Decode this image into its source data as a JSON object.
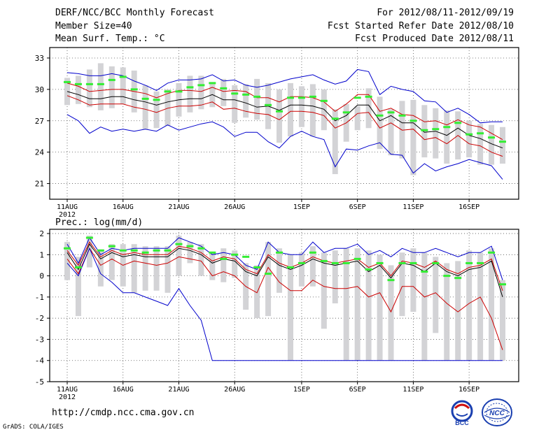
{
  "header": {
    "title": "DERF/NCC/BCC Monthly Forecast",
    "member_size": "Member Size=40",
    "variable": "Mean Surf. Temp.: °C",
    "period": "For 2012/08/11-2012/09/19",
    "refer_date": "Fcst Started Refer Date 2012/08/10",
    "produced_date": "Fcst Produced Date 2012/08/11"
  },
  "footer": {
    "url": "http://cmdp.ncc.cma.gov.cn",
    "credit": "GrADS: COLA/IGES",
    "logo_left": "BCC",
    "logo_right": "NCC"
  },
  "chart_data": [
    {
      "type": "line",
      "title": "Mean Surf. Temp.: °C",
      "ylabel": "",
      "ylim": [
        19.5,
        34
      ],
      "yticks": [
        21,
        24,
        27,
        30,
        33
      ],
      "xtick_labels": [
        "11AUG",
        "16AUG",
        "21AUG",
        "26AUG",
        "1SEP",
        "6SEP",
        "11SEP",
        "16SEP"
      ],
      "xtick_days": [
        0,
        5,
        10,
        15,
        21,
        26,
        31,
        36
      ],
      "year_label": "2012",
      "days": 40,
      "series": [
        {
          "name": "max",
          "color": "#0000cc",
          "values": [
            31.6,
            31.5,
            31.3,
            31.3,
            31.5,
            31.3,
            30.8,
            30.4,
            29.9,
            30.6,
            30.9,
            30.9,
            31.0,
            31.4,
            30.8,
            30.9,
            30.4,
            30.2,
            30.4,
            30.7,
            31.0,
            31.2,
            31.4,
            30.9,
            30.5,
            30.8,
            31.9,
            31.7,
            29.5,
            30.3,
            30.0,
            29.8,
            28.9,
            28.8,
            27.8,
            28.2,
            27.6,
            26.8,
            26.9,
            26.9
          ]
        },
        {
          "name": "upper",
          "color": "#cc0000",
          "values": [
            30.6,
            30.3,
            29.8,
            29.9,
            30.0,
            30.0,
            29.8,
            29.6,
            29.2,
            29.6,
            29.9,
            29.9,
            29.8,
            30.2,
            29.8,
            29.9,
            29.8,
            29.2,
            29.2,
            28.8,
            29.3,
            29.3,
            29.2,
            28.8,
            27.9,
            28.6,
            29.5,
            29.5,
            27.9,
            28.2,
            27.6,
            27.5,
            26.9,
            27.0,
            26.6,
            27.1,
            26.6,
            26.4,
            25.8,
            25.2
          ]
        },
        {
          "name": "mean",
          "color": "#000000",
          "values": [
            29.8,
            29.5,
            29.1,
            29.1,
            29.3,
            29.3,
            29.0,
            28.8,
            28.5,
            28.8,
            29.0,
            29.1,
            29.1,
            29.5,
            29.0,
            29.0,
            28.7,
            28.3,
            28.4,
            28.0,
            28.5,
            28.5,
            28.4,
            28.1,
            27.0,
            27.5,
            28.5,
            28.5,
            27.0,
            27.5,
            26.8,
            26.8,
            25.9,
            26.0,
            25.6,
            26.3,
            25.6,
            25.3,
            24.8,
            24.4
          ]
        },
        {
          "name": "lower",
          "color": "#cc0000",
          "values": [
            29.4,
            29.0,
            28.5,
            28.6,
            28.6,
            28.6,
            28.3,
            28.1,
            27.8,
            28.2,
            28.4,
            28.4,
            28.5,
            28.8,
            28.1,
            28.2,
            27.9,
            27.7,
            27.6,
            27.1,
            27.9,
            27.9,
            27.8,
            27.5,
            26.3,
            26.8,
            27.7,
            27.8,
            26.3,
            26.8,
            26.1,
            26.2,
            25.2,
            25.4,
            24.8,
            25.6,
            24.8,
            24.6,
            24.0,
            23.6
          ]
        },
        {
          "name": "min",
          "color": "#0000cc",
          "values": [
            27.6,
            27.0,
            25.8,
            26.4,
            26.0,
            26.2,
            26.0,
            26.2,
            26.0,
            26.6,
            26.1,
            26.4,
            26.7,
            26.9,
            26.4,
            25.5,
            25.9,
            25.9,
            25.0,
            24.4,
            25.5,
            26.0,
            25.5,
            25.2,
            22.6,
            24.3,
            24.2,
            24.6,
            24.9,
            23.8,
            23.7,
            22.0,
            22.9,
            22.2,
            22.6,
            22.9,
            23.3,
            23.0,
            22.7,
            21.4
          ]
        }
      ],
      "bars": {
        "name": "member range",
        "color": "#d3d3d6",
        "low": [
          28.5,
          28.6,
          28.3,
          28.0,
          28.2,
          28.6,
          27.8,
          26.2,
          26.3,
          26.5,
          27.4,
          27.8,
          28.1,
          28.3,
          28.4,
          26.8,
          27.3,
          27.1,
          26.2,
          24.9,
          25.5,
          26.4,
          25.5,
          26.1,
          21.9,
          25.0,
          26.1,
          26.3,
          24.3,
          23.7,
          23.4,
          21.8,
          23.5,
          23.4,
          22.9,
          23.3,
          23.5,
          22.8,
          22.8,
          22.9
        ],
        "high": [
          31.1,
          31.3,
          31.9,
          32.5,
          32.2,
          32.1,
          31.8,
          30.4,
          29.8,
          30.0,
          30.6,
          31.3,
          31.3,
          30.7,
          31.0,
          30.4,
          30.5,
          31.0,
          30.6,
          30.0,
          30.6,
          30.3,
          30.5,
          30.0,
          28.1,
          28.6,
          28.4,
          30.1,
          29.3,
          28.1,
          28.9,
          29.0,
          28.5,
          28.2,
          28.0,
          27.9,
          27.0,
          26.7,
          26.6,
          26.4
        ]
      },
      "markers": {
        "name": "green markers",
        "color": "#33ee33",
        "values": [
          30.7,
          30.5,
          30.5,
          30.5,
          30.9,
          31.2,
          30.0,
          29.1,
          29.0,
          29.8,
          29.8,
          30.2,
          30.4,
          30.6,
          30.1,
          29.6,
          29.5,
          29.3,
          28.5,
          27.9,
          29.2,
          29.2,
          29.3,
          28.9,
          27.2,
          27.8,
          29.2,
          29.3,
          27.5,
          27.8,
          27.5,
          27.0,
          26.1,
          26.2,
          26.4,
          26.8,
          25.7,
          25.8,
          25.4,
          25.0
        ]
      }
    },
    {
      "type": "line",
      "title": "Prec.: log(mm/d)",
      "ylabel": "",
      "ylim": [
        -5,
        2.2
      ],
      "yticks": [
        -5,
        -4,
        -3,
        -2,
        -1,
        0,
        1,
        2
      ],
      "xtick_labels": [
        "11AUG",
        "16AUG",
        "21AUG",
        "26AUG",
        "1SEP",
        "6SEP",
        "11SEP",
        "16SEP"
      ],
      "xtick_days": [
        0,
        5,
        10,
        15,
        21,
        26,
        31,
        36
      ],
      "year_label": "2012",
      "days": 40,
      "series": [
        {
          "name": "max",
          "color": "#0000cc",
          "values": [
            1.5,
            0.6,
            1.8,
            1.0,
            1.3,
            1.2,
            1.3,
            1.3,
            1.3,
            1.3,
            1.8,
            1.6,
            1.4,
            1.0,
            1.1,
            1.0,
            0.5,
            0.3,
            1.6,
            1.1,
            1.0,
            1.0,
            1.6,
            1.1,
            1.3,
            1.3,
            1.5,
            1.0,
            1.2,
            0.9,
            1.3,
            1.1,
            1.1,
            1.3,
            1.1,
            0.9,
            1.1,
            1.1,
            1.4,
            -0.2
          ]
        },
        {
          "name": "upper",
          "color": "#cc0000",
          "values": [
            1.2,
            0.5,
            1.6,
            0.9,
            1.2,
            1.0,
            1.1,
            1.0,
            1.0,
            1.0,
            1.4,
            1.3,
            1.1,
            0.7,
            0.9,
            0.8,
            0.3,
            0.1,
            1.0,
            0.6,
            0.4,
            0.6,
            0.9,
            0.7,
            0.6,
            0.7,
            0.8,
            0.4,
            0.6,
            0.0,
            0.7,
            0.6,
            0.4,
            0.7,
            0.3,
            0.1,
            0.4,
            0.5,
            0.8,
            -0.7
          ]
        },
        {
          "name": "mean",
          "color": "#000000",
          "values": [
            1.1,
            0.3,
            1.5,
            0.8,
            1.1,
            0.9,
            1.0,
            0.9,
            0.9,
            0.9,
            1.3,
            1.2,
            1.0,
            0.6,
            0.8,
            0.7,
            0.2,
            0.0,
            0.9,
            0.5,
            0.3,
            0.5,
            0.8,
            0.6,
            0.5,
            0.6,
            0.7,
            0.2,
            0.5,
            -0.1,
            0.6,
            0.5,
            0.2,
            0.6,
            0.2,
            0.0,
            0.3,
            0.4,
            0.7,
            -1.0
          ]
        },
        {
          "name": "lower",
          "color": "#cc0000",
          "values": [
            0.8,
            0.1,
            1.3,
            0.5,
            0.8,
            0.5,
            0.7,
            0.6,
            0.5,
            0.6,
            0.9,
            0.8,
            0.7,
            0.0,
            0.2,
            0.0,
            -0.5,
            -0.8,
            0.4,
            -0.3,
            -0.7,
            -0.7,
            -0.2,
            -0.5,
            -0.6,
            -0.6,
            -0.5,
            -1.0,
            -0.8,
            -1.7,
            -0.5,
            -0.5,
            -1.0,
            -0.8,
            -1.3,
            -1.7,
            -1.3,
            -1.0,
            -2.0,
            -3.5
          ]
        },
        {
          "name": "min",
          "color": "#0000cc",
          "values": [
            0.6,
            0.0,
            1.3,
            0.1,
            -0.3,
            -0.8,
            -0.8,
            -1.0,
            -1.2,
            -1.4,
            -0.6,
            -1.4,
            -2.1,
            -4.0,
            -4.0,
            -4.0,
            -4.0,
            -4.0,
            -4.0,
            -4.0,
            -4.0,
            -4.0,
            -4.0,
            -4.0,
            -4.0,
            -4.0,
            -4.0,
            -4.0,
            -4.0,
            -4.0,
            -4.0,
            -4.0,
            -4.0,
            -4.0,
            -4.0,
            -4.0,
            -4.0,
            -4.0,
            -4.0,
            -4.0
          ]
        }
      ],
      "bars": {
        "name": "member range",
        "color": "#d3d3d6",
        "low": [
          -0.2,
          -1.9,
          0.4,
          -0.5,
          -0.2,
          -0.5,
          -0.8,
          -0.7,
          -0.7,
          -0.8,
          0.0,
          0.6,
          0.0,
          -0.2,
          -0.3,
          -0.1,
          -1.6,
          -2.0,
          -1.9,
          -0.8,
          -4.0,
          -0.5,
          -0.5,
          -2.5,
          -1.3,
          -4.0,
          -4.0,
          -4.0,
          -4.0,
          -4.0,
          -1.9,
          -1.7,
          -4.0,
          -2.7,
          -4.0,
          -4.0,
          -4.0,
          -4.0,
          -4.0,
          -4.0
        ],
        "high": [
          1.6,
          0.9,
          1.9,
          1.2,
          1.5,
          1.5,
          1.5,
          1.4,
          1.4,
          1.4,
          1.9,
          1.6,
          1.5,
          1.1,
          1.3,
          1.2,
          0.6,
          0.5,
          1.6,
          1.3,
          1.0,
          1.1,
          1.4,
          1.1,
          1.2,
          1.3,
          1.3,
          1.2,
          1.0,
          0.5,
          1.1,
          1.3,
          1.1,
          0.9,
          0.6,
          0.7,
          1.2,
          1.1,
          1.3,
          -0.2
        ]
      },
      "markers": {
        "name": "green markers",
        "color": "#33ee33",
        "values": [
          1.3,
          0.4,
          1.8,
          1.2,
          1.4,
          1.2,
          1.2,
          1.1,
          1.2,
          1.2,
          1.5,
          1.4,
          1.3,
          1.1,
          0.8,
          1.0,
          0.9,
          0.4,
          0.1,
          1.1,
          0.4,
          0.6,
          1.1,
          0.7,
          0.6,
          0.6,
          0.8,
          0.3,
          0.6,
          -0.2,
          0.6,
          0.6,
          0.2,
          0.6,
          0.0,
          -0.1,
          0.6,
          0.6,
          1.1,
          -0.4
        ]
      }
    }
  ]
}
